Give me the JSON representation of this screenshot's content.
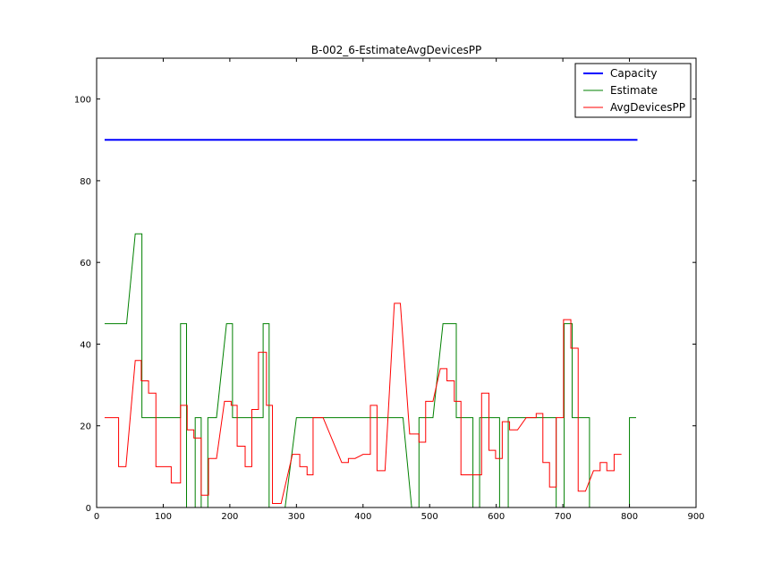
{
  "chart_data": {
    "type": "line",
    "title": "B-002_6-EstimateAvgDevicesPP",
    "xlabel": "",
    "ylabel": "",
    "xlim": [
      0,
      900
    ],
    "ylim": [
      0,
      110
    ],
    "xticks": [
      0,
      100,
      200,
      300,
      400,
      500,
      600,
      700,
      800,
      900
    ],
    "yticks": [
      0,
      20,
      40,
      60,
      80,
      100
    ],
    "grid": false,
    "legend_position": "top-right",
    "series": [
      {
        "name": "Capacity",
        "color": "#0000ff",
        "linewidth": 2,
        "points": [
          [
            12,
            90
          ],
          [
            812,
            90
          ]
        ]
      },
      {
        "name": "Estimate",
        "color": "#008000",
        "linewidth": 1,
        "points": [
          [
            12,
            45
          ],
          [
            45,
            45
          ],
          [
            58,
            67
          ],
          [
            68,
            67
          ],
          [
            68,
            22
          ],
          [
            126,
            22
          ],
          [
            126,
            45
          ],
          [
            135,
            45
          ],
          [
            135,
            0
          ],
          [
            148,
            0
          ],
          [
            148,
            22
          ],
          [
            157,
            22
          ],
          [
            157,
            0
          ],
          [
            167,
            0
          ],
          [
            167,
            22
          ],
          [
            180,
            22
          ],
          [
            195,
            45
          ],
          [
            204,
            45
          ],
          [
            204,
            22
          ],
          [
            250,
            22
          ],
          [
            250,
            45
          ],
          [
            259,
            45
          ],
          [
            259,
            0
          ],
          [
            283,
            0
          ],
          [
            300,
            22
          ],
          [
            460,
            22
          ],
          [
            473,
            0
          ],
          [
            484,
            0
          ],
          [
            484,
            22
          ],
          [
            505,
            22
          ],
          [
            520,
            45
          ],
          [
            540,
            45
          ],
          [
            540,
            22
          ],
          [
            565,
            22
          ],
          [
            565,
            0
          ],
          [
            575,
            0
          ],
          [
            575,
            22
          ],
          [
            605,
            22
          ],
          [
            605,
            0
          ],
          [
            618,
            0
          ],
          [
            618,
            22
          ],
          [
            690,
            22
          ],
          [
            690,
            0
          ],
          [
            702,
            0
          ],
          [
            702,
            45
          ],
          [
            714,
            45
          ],
          [
            714,
            22
          ],
          [
            740,
            22
          ],
          [
            740,
            0
          ],
          [
            800,
            0
          ],
          [
            800,
            22
          ],
          [
            810,
            22
          ]
        ]
      },
      {
        "name": "AvgDevicesPP",
        "color": "#ff0000",
        "linewidth": 1,
        "points": [
          [
            12,
            22
          ],
          [
            33,
            22
          ],
          [
            33,
            10
          ],
          [
            44,
            10
          ],
          [
            58,
            36
          ],
          [
            67,
            36
          ],
          [
            67,
            31
          ],
          [
            78,
            31
          ],
          [
            78,
            28
          ],
          [
            89,
            28
          ],
          [
            89,
            10
          ],
          [
            112,
            10
          ],
          [
            112,
            6
          ],
          [
            126,
            6
          ],
          [
            126,
            25
          ],
          [
            136,
            25
          ],
          [
            136,
            19
          ],
          [
            146,
            19
          ],
          [
            146,
            17
          ],
          [
            157,
            17
          ],
          [
            157,
            3
          ],
          [
            168,
            3
          ],
          [
            168,
            12
          ],
          [
            180,
            12
          ],
          [
            192,
            26
          ],
          [
            202,
            26
          ],
          [
            202,
            25
          ],
          [
            211,
            25
          ],
          [
            211,
            15
          ],
          [
            223,
            15
          ],
          [
            223,
            10
          ],
          [
            233,
            10
          ],
          [
            233,
            24
          ],
          [
            243,
            24
          ],
          [
            243,
            38
          ],
          [
            255,
            38
          ],
          [
            255,
            25
          ],
          [
            264,
            25
          ],
          [
            264,
            1
          ],
          [
            277,
            1
          ],
          [
            294,
            13
          ],
          [
            305,
            13
          ],
          [
            305,
            10
          ],
          [
            316,
            10
          ],
          [
            316,
            8
          ],
          [
            325,
            8
          ],
          [
            325,
            22
          ],
          [
            340,
            22
          ],
          [
            368,
            11
          ],
          [
            378,
            11
          ],
          [
            378,
            12
          ],
          [
            388,
            12
          ],
          [
            400,
            13
          ],
          [
            411,
            13
          ],
          [
            411,
            25
          ],
          [
            421,
            25
          ],
          [
            421,
            9
          ],
          [
            433,
            9
          ],
          [
            447,
            50
          ],
          [
            456,
            50
          ],
          [
            470,
            18
          ],
          [
            484,
            18
          ],
          [
            484,
            16
          ],
          [
            494,
            16
          ],
          [
            494,
            26
          ],
          [
            505,
            26
          ],
          [
            516,
            34
          ],
          [
            526,
            34
          ],
          [
            526,
            31
          ],
          [
            537,
            31
          ],
          [
            537,
            26
          ],
          [
            547,
            26
          ],
          [
            547,
            8
          ],
          [
            578,
            8
          ],
          [
            578,
            28
          ],
          [
            589,
            28
          ],
          [
            589,
            14
          ],
          [
            599,
            14
          ],
          [
            599,
            12
          ],
          [
            609,
            12
          ],
          [
            609,
            21
          ],
          [
            620,
            21
          ],
          [
            620,
            19
          ],
          [
            632,
            19
          ],
          [
            645,
            22
          ],
          [
            660,
            22
          ],
          [
            660,
            23
          ],
          [
            670,
            23
          ],
          [
            670,
            11
          ],
          [
            680,
            11
          ],
          [
            680,
            5
          ],
          [
            690,
            5
          ],
          [
            690,
            22
          ],
          [
            701,
            22
          ],
          [
            701,
            46
          ],
          [
            712,
            46
          ],
          [
            712,
            39
          ],
          [
            723,
            39
          ],
          [
            723,
            4
          ],
          [
            734,
            4
          ],
          [
            746,
            9
          ],
          [
            756,
            9
          ],
          [
            756,
            11
          ],
          [
            766,
            11
          ],
          [
            766,
            9
          ],
          [
            777,
            9
          ],
          [
            777,
            13
          ],
          [
            788,
            13
          ]
        ]
      }
    ]
  }
}
